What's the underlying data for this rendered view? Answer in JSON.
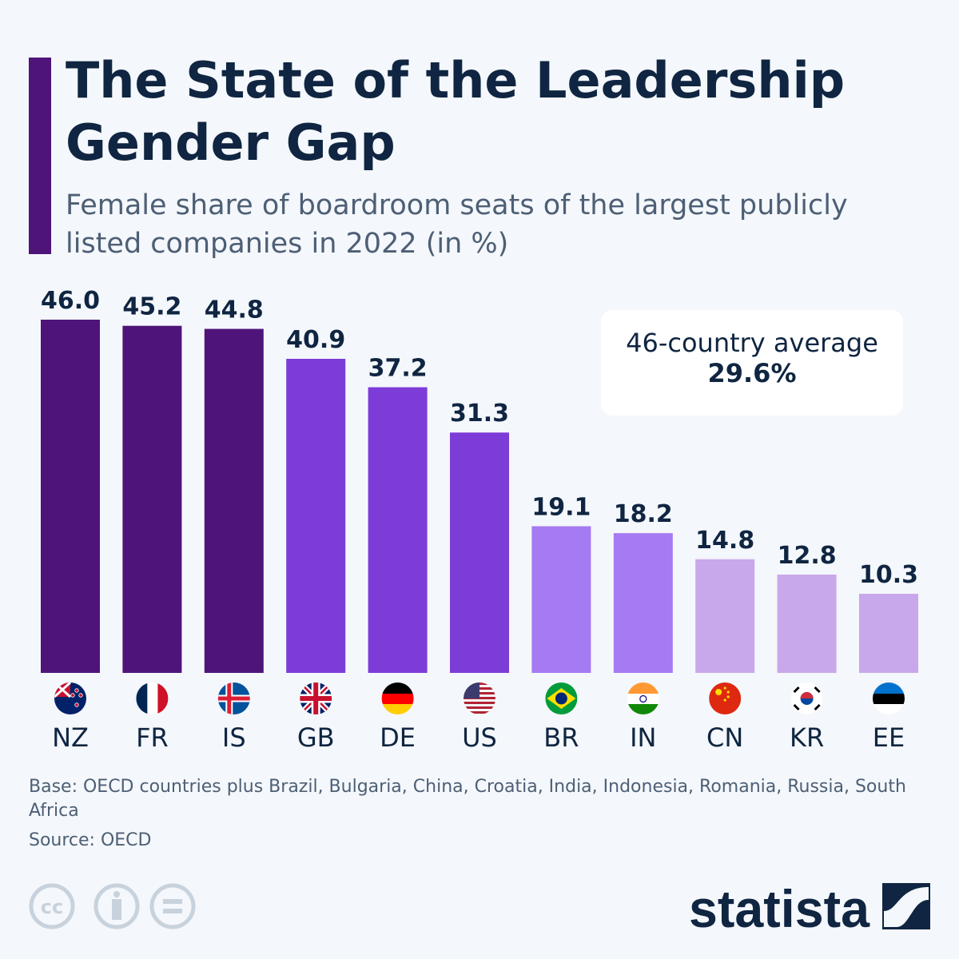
{
  "title": "The State of the Leadership Gender Gap",
  "subtitle": "Female share of boardroom seats of the largest publicly listed companies in 2022 (in %)",
  "average_box": {
    "label": "46-country average",
    "value": "29.6%"
  },
  "note": "Base: OECD countries plus Brazil, Bulgaria, China, Croatia, India, Indonesia, Romania, Russia, South Africa",
  "source": "Source: OECD",
  "brand": "statista",
  "chart_data": {
    "type": "bar",
    "title": "The State of the Leadership Gender Gap",
    "categories": [
      "NZ",
      "FR",
      "IS",
      "GB",
      "DE",
      "US",
      "BR",
      "IN",
      "CN",
      "KR",
      "EE"
    ],
    "values": [
      46.0,
      45.2,
      44.8,
      40.9,
      37.2,
      31.3,
      19.1,
      18.2,
      14.8,
      12.8,
      10.3
    ],
    "colors": [
      "#4f1479",
      "#4f1479",
      "#4f1479",
      "#7d3cd8",
      "#7d3cd8",
      "#7d3cd8",
      "#a67af2",
      "#a67af2",
      "#c8a7eb",
      "#c8a7eb",
      "#c8a7eb"
    ],
    "ylim": [
      0,
      46
    ],
    "grid": false,
    "data_labels": true,
    "legend": "none"
  }
}
